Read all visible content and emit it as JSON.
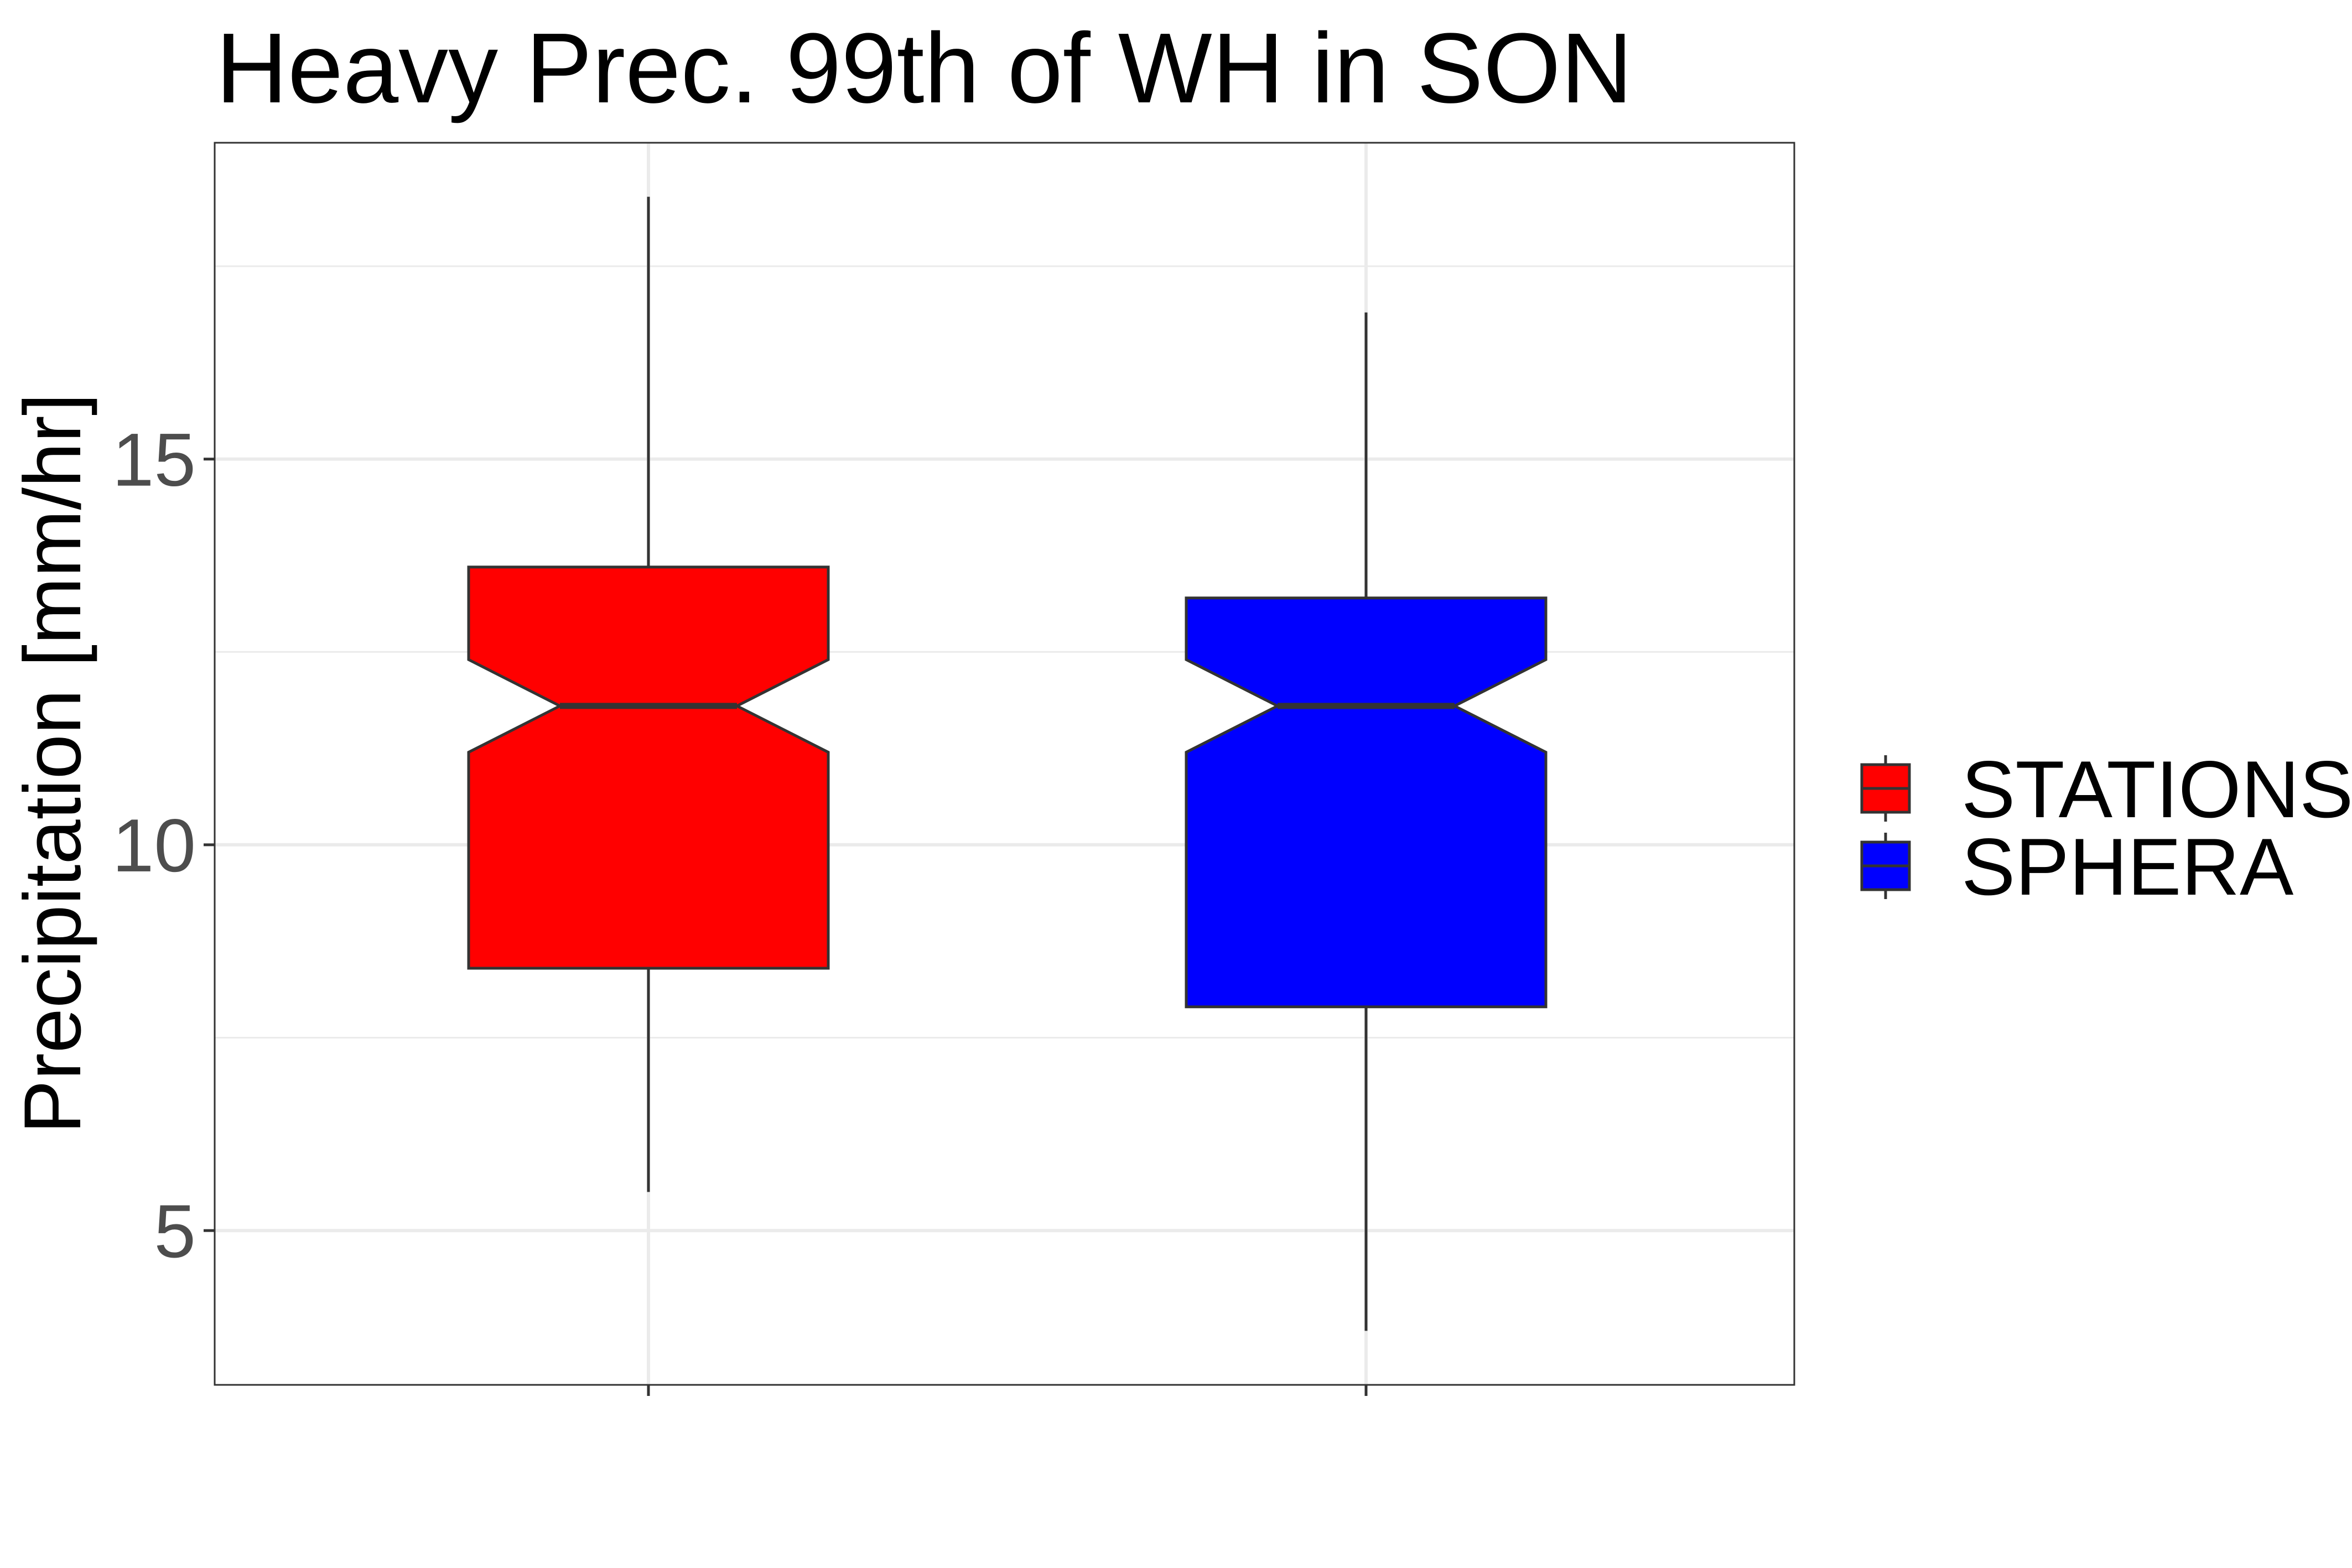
{
  "chart_data": {
    "type": "boxplot",
    "title": "Heavy Prec. 99th of WH in SON",
    "xlabel": "",
    "ylabel": "Precipitation [mm/hr]",
    "ylim": [
      3.0,
      19.1
    ],
    "y_ticks": [
      5,
      10,
      15
    ],
    "y_minor_ticks": [
      7.5,
      12.5,
      17.5
    ],
    "grid": true,
    "legend_position": "right",
    "notched": true,
    "series": [
      {
        "name": "STATIONS",
        "color": "#ff0000",
        "whisker_low": 5.5,
        "q1": 8.4,
        "median": 11.8,
        "q3": 13.6,
        "whisker_high": 18.4,
        "notch_low": 11.2,
        "notch_high": 12.4
      },
      {
        "name": "SPHERA",
        "color": "#0000ff",
        "whisker_low": 3.7,
        "q1": 7.9,
        "median": 11.8,
        "q3": 13.2,
        "whisker_high": 16.9,
        "notch_low": 11.2,
        "notch_high": 12.4
      }
    ]
  }
}
